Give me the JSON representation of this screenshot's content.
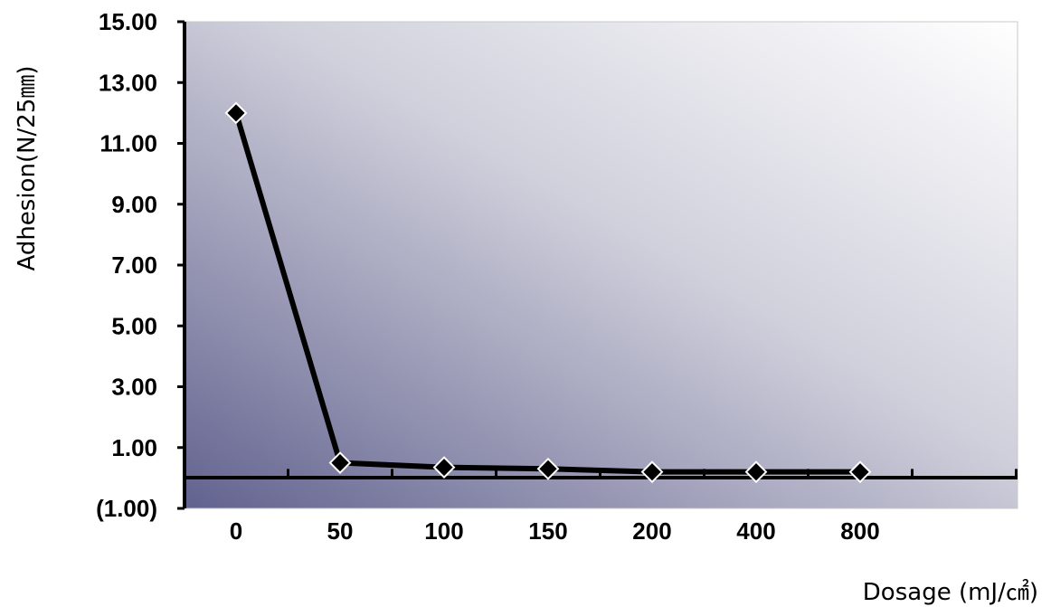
{
  "chart_data": {
    "type": "line",
    "title": "",
    "xlabel": "Dosage (mJ/㎠)",
    "ylabel": "Adhesion(N/25㎜)",
    "categories": [
      "0",
      "50",
      "100",
      "150",
      "200",
      "400",
      "800"
    ],
    "series": [
      {
        "values": [
          12.0,
          0.5,
          0.35,
          0.3,
          0.2,
          0.2,
          0.2
        ]
      }
    ],
    "ylim": [
      -1,
      15
    ],
    "y_ticks": [
      "(1.00)",
      "1.00",
      "3.00",
      "5.00",
      "7.00",
      "9.00",
      "11.00",
      "13.00",
      "15.00"
    ],
    "y_tick_values": [
      -1,
      1,
      3,
      5,
      7,
      9,
      11,
      13,
      15
    ],
    "negative_tick_color": "#e00000",
    "line_color": "#000000",
    "marker": "diamond",
    "marker_fill": "#000000",
    "marker_stroke": "#ffffff",
    "background_gradient": [
      "#62628f",
      "#ffffff"
    ],
    "grid": false,
    "legend": "none"
  }
}
